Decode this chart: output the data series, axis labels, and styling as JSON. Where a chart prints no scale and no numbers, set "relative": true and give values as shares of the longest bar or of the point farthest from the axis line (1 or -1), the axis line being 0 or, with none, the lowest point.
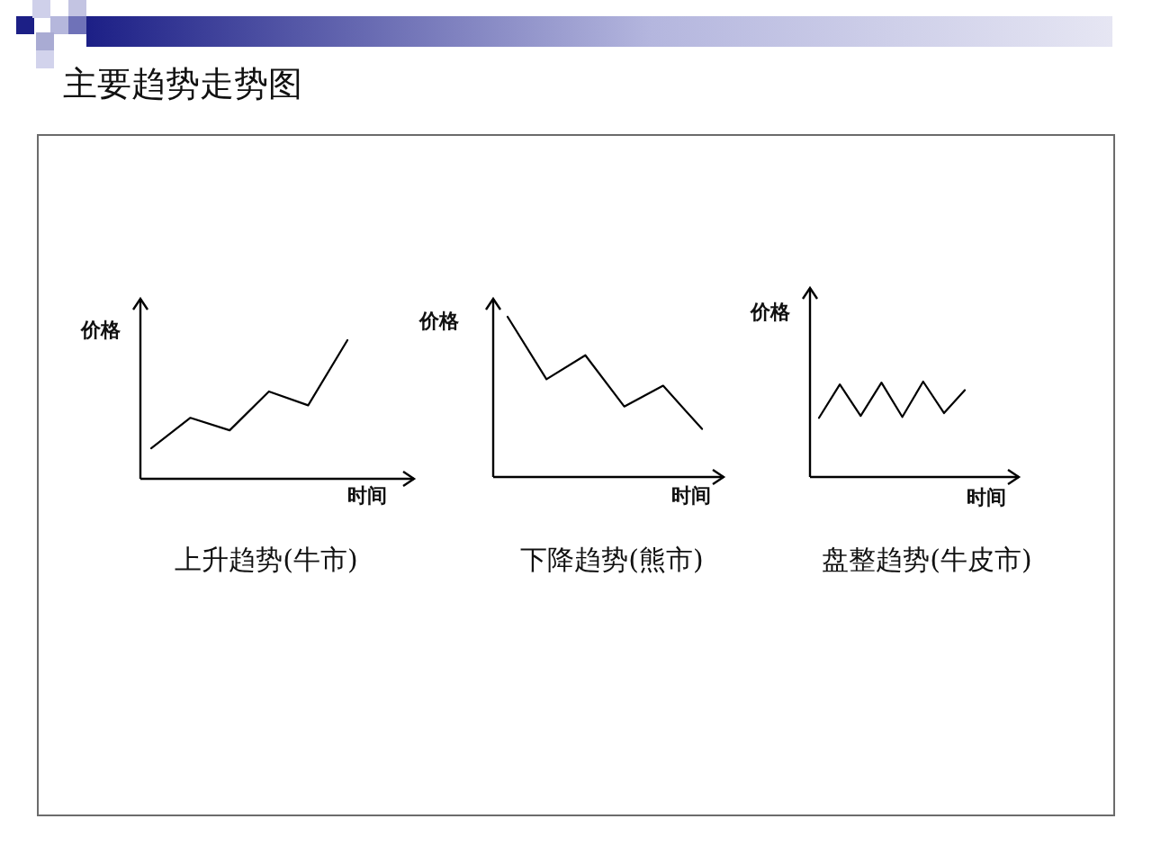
{
  "chart_data": [
    {
      "type": "line",
      "title": "上升趋势(牛市)",
      "annotations": [
        "主要趋势走势图"
      ],
      "xlabel": "时间",
      "ylabel": "价格",
      "relative": true,
      "categories": [
        null,
        null,
        null,
        null,
        null,
        null
      ],
      "values": [
        0.22,
        0.44,
        0.35,
        0.63,
        0.53,
        1
      ],
      "color": "#000000"
    },
    {
      "type": "line",
      "title": "下降趋势(熊市)",
      "xlabel": "时间",
      "ylabel": "价格",
      "relative": true,
      "categories": [
        null,
        null,
        null,
        null,
        null,
        null
      ],
      "values": [
        1,
        0.61,
        0.76,
        0.44,
        0.57,
        0.3
      ],
      "color": "#000000"
    },
    {
      "type": "line",
      "title": "盘整趋势(牛皮市)",
      "xlabel": "时间",
      "ylabel": "价格",
      "relative": true,
      "categories": [
        null,
        null,
        null,
        null,
        null,
        null,
        null,
        null
      ],
      "values": [
        0.62,
        0.97,
        0.64,
        0.99,
        0.63,
        1,
        0.67,
        0.91
      ],
      "color": "#000000"
    }
  ]
}
